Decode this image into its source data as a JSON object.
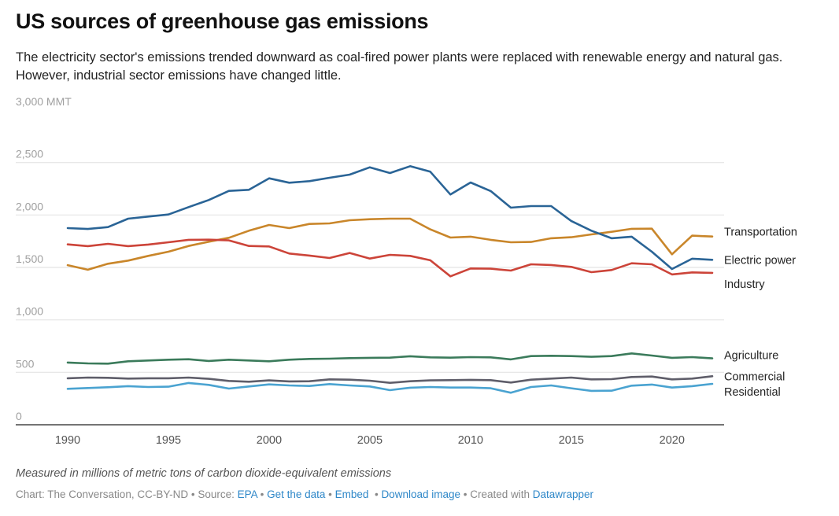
{
  "header": {
    "title": "US sources of greenhouse gas emissions",
    "subtitle": "The electricity sector's emissions trended downward as coal-fired power plants were replaced with renewable energy and natural gas. However, industrial sector emissions have changed little."
  },
  "chart_data": {
    "type": "line",
    "title": "US sources of greenhouse gas emissions",
    "xlabel": "",
    "ylabel": "MMT",
    "ylim": [
      0,
      3000
    ],
    "xlim": [
      1990,
      2022
    ],
    "grid": true,
    "legend": "direct labels at line ends (right)",
    "y_ticks": [
      {
        "value": 0,
        "label": "0"
      },
      {
        "value": 500,
        "label": "500"
      },
      {
        "value": 1000,
        "label": "1,000"
      },
      {
        "value": 1500,
        "label": "1,500"
      },
      {
        "value": 2000,
        "label": "2,000"
      },
      {
        "value": 2500,
        "label": "2,500"
      },
      {
        "value": 3000,
        "label": "3,000 MMT"
      }
    ],
    "x_ticks": [
      {
        "value": 1990,
        "label": "1990"
      },
      {
        "value": 1995,
        "label": "1995"
      },
      {
        "value": 2000,
        "label": "2000"
      },
      {
        "value": 2005,
        "label": "2005"
      },
      {
        "value": 2010,
        "label": "2010"
      },
      {
        "value": 2015,
        "label": "2015"
      },
      {
        "value": 2020,
        "label": "2020"
      }
    ],
    "x": [
      1990,
      1991,
      1992,
      1993,
      1994,
      1995,
      1996,
      1997,
      1998,
      1999,
      2000,
      2001,
      2002,
      2003,
      2004,
      2005,
      2006,
      2007,
      2008,
      2009,
      2010,
      2011,
      2012,
      2013,
      2014,
      2015,
      2016,
      2017,
      2018,
      2019,
      2020,
      2021,
      2022
    ],
    "series": [
      {
        "name": "Transportation",
        "color": "#c9862a",
        "label_offset": -6,
        "values": [
          1522,
          1478,
          1535,
          1565,
          1610,
          1650,
          1705,
          1745,
          1783,
          1850,
          1905,
          1875,
          1915,
          1920,
          1950,
          1960,
          1965,
          1965,
          1863,
          1785,
          1793,
          1763,
          1740,
          1743,
          1778,
          1788,
          1815,
          1840,
          1868,
          1870,
          1625,
          1803,
          1795
        ]
      },
      {
        "name": "Electric power",
        "color": "#2a6496",
        "label_offset": 0,
        "values": [
          1875,
          1867,
          1885,
          1965,
          1985,
          2005,
          2075,
          2143,
          2230,
          2240,
          2350,
          2308,
          2323,
          2355,
          2385,
          2455,
          2400,
          2465,
          2413,
          2195,
          2310,
          2228,
          2070,
          2085,
          2085,
          1943,
          1850,
          1778,
          1793,
          1650,
          1485,
          1583,
          1573
        ]
      },
      {
        "name": "Industry",
        "color": "#cc4439",
        "label_offset": 14,
        "values": [
          1720,
          1703,
          1725,
          1703,
          1718,
          1740,
          1763,
          1765,
          1758,
          1705,
          1700,
          1633,
          1613,
          1590,
          1638,
          1585,
          1620,
          1610,
          1568,
          1415,
          1490,
          1488,
          1470,
          1530,
          1523,
          1505,
          1455,
          1475,
          1540,
          1530,
          1433,
          1453,
          1448
        ]
      },
      {
        "name": "Agriculture",
        "color": "#3b7b5b",
        "label_offset": -4,
        "values": [
          593,
          585,
          583,
          605,
          613,
          620,
          625,
          608,
          620,
          613,
          605,
          620,
          628,
          630,
          635,
          638,
          640,
          653,
          643,
          640,
          645,
          643,
          623,
          655,
          658,
          655,
          648,
          655,
          680,
          660,
          638,
          645,
          633
        ]
      },
      {
        "name": "Commercial",
        "color": "#5f5e6a",
        "label_offset": 0,
        "values": [
          443,
          450,
          448,
          440,
          443,
          443,
          450,
          438,
          418,
          410,
          423,
          413,
          415,
          433,
          430,
          420,
          400,
          415,
          423,
          425,
          428,
          425,
          403,
          430,
          440,
          450,
          433,
          435,
          455,
          460,
          433,
          440,
          463
        ]
      },
      {
        "name": "Residential",
        "color": "#4aa3d1",
        "label_offset": 10,
        "values": [
          343,
          350,
          358,
          368,
          360,
          363,
          398,
          380,
          345,
          365,
          385,
          375,
          370,
          388,
          375,
          365,
          330,
          353,
          360,
          355,
          355,
          348,
          305,
          360,
          375,
          348,
          323,
          325,
          373,
          383,
          355,
          368,
          390
        ]
      }
    ]
  },
  "notes": "Measured in millions of metric tons of carbon dioxide-equivalent emissions",
  "footer": {
    "prefix": "Chart: The Conversation, CC-BY-ND • Source: ",
    "source_link": "EPA",
    "sep": " • ",
    "get_data": "Get the data",
    "embed": "Embed",
    "download": "Download image",
    "created_with": " • Created with ",
    "datawrapper": "Datawrapper"
  }
}
